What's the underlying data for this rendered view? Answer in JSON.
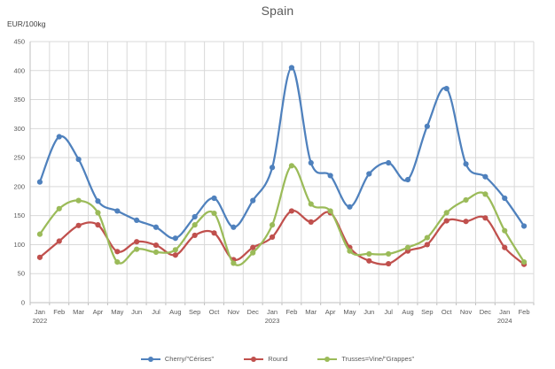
{
  "chart_data": {
    "type": "line",
    "title": "Spain",
    "ylabel": "EUR/100kg",
    "xlabel": "",
    "ylim": [
      0,
      450
    ],
    "ytick_step": 50,
    "grid": true,
    "line_style": "smooth-with-markers",
    "legend_position": "bottom",
    "categories": [
      "Jan",
      "Feb",
      "Mar",
      "Apr",
      "May",
      "Jun",
      "Jul",
      "Aug",
      "Sep",
      "Oct",
      "Nov",
      "Dec",
      "Jan",
      "Feb",
      "Mar",
      "Apr",
      "May",
      "Jun",
      "Jul",
      "Aug",
      "Sep",
      "Oct",
      "Nov",
      "Dec",
      "Jan",
      "Feb"
    ],
    "year_marks": [
      {
        "index": 0,
        "label": "2022"
      },
      {
        "index": 12,
        "label": "2023"
      },
      {
        "index": 24,
        "label": "2024"
      }
    ],
    "series": [
      {
        "name": "Cherry/\"Cérises\"",
        "color": "#4F81BD",
        "values": [
          208,
          286,
          247,
          175,
          158,
          142,
          130,
          111,
          148,
          180,
          130,
          176,
          233,
          405,
          241,
          219,
          165,
          222,
          241,
          212,
          304,
          369,
          239,
          217,
          180,
          132
        ]
      },
      {
        "name": "Round",
        "color": "#C0504D",
        "values": [
          78,
          106,
          133,
          134,
          88,
          105,
          99,
          82,
          116,
          120,
          74,
          95,
          113,
          158,
          139,
          155,
          95,
          72,
          67,
          89,
          100,
          141,
          140,
          146,
          95,
          66
        ]
      },
      {
        "name": "Trusses=Vine/\"Grappes\"",
        "color": "#9BBB59",
        "values": [
          118,
          162,
          176,
          155,
          70,
          92,
          87,
          91,
          134,
          154,
          68,
          86,
          134,
          236,
          170,
          158,
          89,
          84,
          84,
          95,
          112,
          155,
          177,
          187,
          124,
          70
        ]
      }
    ],
    "colors": {
      "gridline": "#D9D9D9",
      "axis": "#BFBFBF",
      "tick_text": "#595959",
      "title_text": "#595959"
    }
  }
}
